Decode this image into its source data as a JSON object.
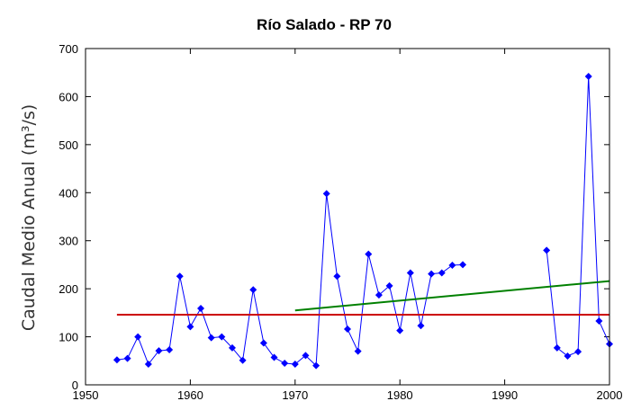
{
  "chart_data": {
    "type": "line",
    "title": "Río Salado - RP 70",
    "xlabel": "",
    "ylabel": "Caudal Medio Anual (m³/s)",
    "xlim": [
      1950,
      2000
    ],
    "ylim": [
      0,
      700
    ],
    "x_ticks": [
      1950,
      1960,
      1970,
      1980,
      1990,
      2000
    ],
    "y_ticks": [
      0,
      100,
      200,
      300,
      400,
      500,
      600,
      700
    ],
    "grid": false,
    "legend": "none",
    "series": [
      {
        "color": "#0000ff",
        "marker": "diamond",
        "segments": [
          [
            [
              1953,
              52
            ],
            [
              1954,
              55
            ],
            [
              1955,
              100
            ],
            [
              1956,
              43
            ],
            [
              1957,
              71
            ],
            [
              1958,
              73
            ],
            [
              1959,
              226
            ],
            [
              1960,
              121
            ],
            [
              1961,
              159
            ],
            [
              1962,
              98
            ],
            [
              1963,
              100
            ],
            [
              1964,
              77
            ],
            [
              1965,
              51
            ],
            [
              1966,
              198
            ],
            [
              1967,
              87
            ],
            [
              1968,
              57
            ],
            [
              1969,
              45
            ],
            [
              1970,
              43
            ],
            [
              1971,
              61
            ],
            [
              1972,
              40
            ],
            [
              1973,
              398
            ],
            [
              1974,
              226
            ],
            [
              1975,
              116
            ],
            [
              1976,
              70
            ],
            [
              1977,
              272
            ],
            [
              1978,
              187
            ],
            [
              1979,
              206
            ],
            [
              1980,
              113
            ],
            [
              1981,
              233
            ],
            [
              1982,
              123
            ],
            [
              1983,
              231
            ],
            [
              1984,
              233
            ],
            [
              1985,
              249
            ],
            [
              1986,
              250
            ]
          ],
          [
            [
              1994,
              280
            ],
            [
              1995,
              77
            ],
            [
              1996,
              60
            ],
            [
              1997,
              69
            ],
            [
              1998,
              642
            ],
            [
              1999,
              133
            ],
            [
              2000,
              85
            ]
          ]
        ]
      },
      {
        "color": "#cc0000",
        "marker": "none",
        "segments": [
          [
            [
              1953,
              146
            ],
            [
              2000,
              146
            ]
          ]
        ]
      },
      {
        "color": "#008000",
        "marker": "none",
        "segments": [
          [
            [
              1970,
              155
            ],
            [
              2000,
              216
            ]
          ]
        ]
      }
    ]
  }
}
